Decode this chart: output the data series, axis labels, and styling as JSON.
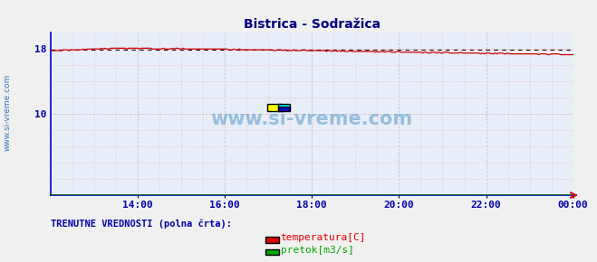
{
  "title": "Bistrica - Sodražica",
  "title_color": "#000080",
  "title_fontsize": 10,
  "bg_color": "#f0f0f0",
  "plot_bg_color": "#e8eef8",
  "axis_color": "#0000cc",
  "tick_color": "#0000aa",
  "ylim": [
    0,
    20
  ],
  "yticks": [
    10,
    18
  ],
  "xlim": [
    0,
    288
  ],
  "xtick_labels": [
    "14:00",
    "16:00",
    "18:00",
    "20:00",
    "22:00",
    "00:00"
  ],
  "xtick_positions": [
    48,
    96,
    144,
    192,
    240,
    288
  ],
  "temp_color": "#cc0000",
  "flow_color": "#008800",
  "avg_color": "#400000",
  "watermark_text": "www.si-vreme.com",
  "watermark_color": "#5599cc",
  "sidebar_text": "www.si-vreme.com",
  "sidebar_color": "#3377bb",
  "legend_label1": "temperatura[C]",
  "legend_label2": "pretok[m3/s]",
  "legend_color1": "#dd0000",
  "legend_color2": "#00aa00",
  "bottom_label": "TRENUTNE VREDNOSTI (polna črta):",
  "bottom_label_color": "#0000aa",
  "n_points": 289,
  "avg_value": 17.95
}
